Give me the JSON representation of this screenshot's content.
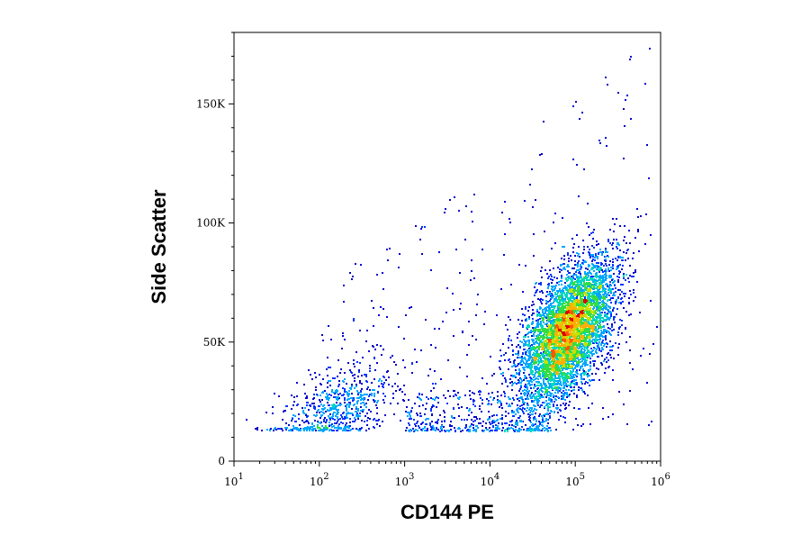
{
  "chart_data": {
    "type": "scatter",
    "style": "flow-cytometry pseudocolor density dot plot",
    "xlabel": "CD144 PE",
    "ylabel": "Side Scatter",
    "x_scale": "log",
    "xlim": [
      10,
      1000000
    ],
    "x_ticks": [
      {
        "value": 10,
        "base": "10",
        "exp": "1"
      },
      {
        "value": 100,
        "base": "10",
        "exp": "2"
      },
      {
        "value": 1000,
        "base": "10",
        "exp": "3"
      },
      {
        "value": 10000,
        "base": "10",
        "exp": "4"
      },
      {
        "value": 100000,
        "base": "10",
        "exp": "5"
      },
      {
        "value": 1000000,
        "base": "10",
        "exp": "6"
      }
    ],
    "y_scale": "linear",
    "ylim": [
      0,
      180000
    ],
    "y_ticks": [
      {
        "value": 0,
        "label": "0"
      },
      {
        "value": 50000,
        "label": "50K"
      },
      {
        "value": 100000,
        "label": "100K"
      },
      {
        "value": 150000,
        "label": "150K"
      }
    ],
    "grid": false,
    "legend": "none",
    "colormap": [
      "#0000cc",
      "#0033ff",
      "#00a6ff",
      "#00d7c0",
      "#33dd44",
      "#c8e000",
      "#ffb000",
      "#ff5500",
      "#dd0000"
    ],
    "populations": [
      {
        "x_center": 80000,
        "y_center": 55000,
        "x_spread_log10": 0.28,
        "y_spread": 15000,
        "events": 5200,
        "density": "high"
      },
      {
        "x_center": 150,
        "y_center": 22000,
        "x_spread_log10": 0.35,
        "y_spread": 9000,
        "events": 650,
        "density": "medium"
      },
      {
        "x_from": 1000,
        "x_to": 50000,
        "y_from": 13000,
        "y_to": 30000,
        "events": 420,
        "density": "low"
      },
      {
        "x_from": 100,
        "x_to": 800000,
        "y_from": 15000,
        "y_to": 178000,
        "events": 320,
        "density": "sparse"
      }
    ]
  }
}
